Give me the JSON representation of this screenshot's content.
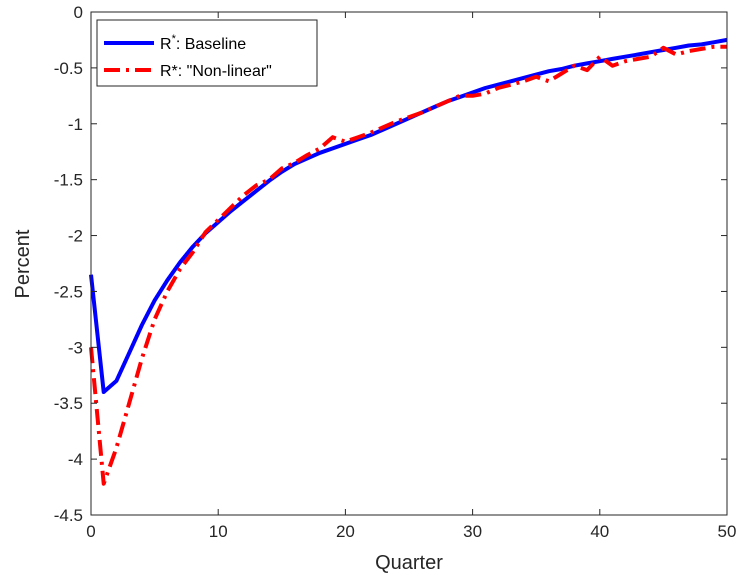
{
  "chart_data": {
    "type": "line",
    "xlabel": "Quarter",
    "ylabel": "Percent",
    "xlim": [
      0,
      50
    ],
    "ylim": [
      -4.5,
      0
    ],
    "xticks": [
      "0",
      "10",
      "20",
      "30",
      "40",
      "50"
    ],
    "yticks": [
      "0",
      "-0.5",
      "-1",
      "-1.5",
      "-2",
      "-2.5",
      "-3",
      "-3.5",
      "-4",
      "-4.5"
    ],
    "grid": false,
    "legend_position": "top-left",
    "series": [
      {
        "name": "R*: Baseline",
        "legend_base": "R",
        "legend_sup": "*",
        "legend_rest": ": Baseline",
        "color": "#0000ff",
        "style": "solid",
        "x": [
          0,
          1,
          2,
          3,
          4,
          5,
          6,
          7,
          8,
          9,
          10,
          11,
          12,
          13,
          14,
          15,
          16,
          17,
          18,
          19,
          20,
          21,
          22,
          23,
          24,
          25,
          26,
          27,
          28,
          29,
          30,
          31,
          32,
          33,
          34,
          35,
          36,
          37,
          38,
          39,
          40,
          41,
          42,
          43,
          44,
          45,
          46,
          47,
          48,
          49,
          50
        ],
        "y": [
          -2.35,
          -3.4,
          -3.3,
          -3.05,
          -2.8,
          -2.58,
          -2.4,
          -2.24,
          -2.1,
          -1.98,
          -1.88,
          -1.78,
          -1.69,
          -1.6,
          -1.51,
          -1.43,
          -1.36,
          -1.31,
          -1.26,
          -1.22,
          -1.18,
          -1.14,
          -1.1,
          -1.05,
          -1.0,
          -0.95,
          -0.9,
          -0.85,
          -0.8,
          -0.76,
          -0.72,
          -0.68,
          -0.65,
          -0.62,
          -0.59,
          -0.56,
          -0.53,
          -0.51,
          -0.48,
          -0.46,
          -0.44,
          -0.42,
          -0.4,
          -0.38,
          -0.36,
          -0.34,
          -0.32,
          -0.3,
          -0.29,
          -0.27,
          -0.25
        ]
      },
      {
        "name": "R*: \"Non-linear\"",
        "legend_base": "R*: \"Non-linear\"",
        "legend_sup": "",
        "legend_rest": "",
        "color": "#ff0000",
        "style": "dashdot",
        "x": [
          0,
          1,
          2,
          3,
          4,
          5,
          6,
          7,
          8,
          9,
          10,
          11,
          12,
          13,
          14,
          15,
          16,
          17,
          18,
          19,
          20,
          21,
          22,
          23,
          24,
          25,
          26,
          27,
          28,
          29,
          30,
          31,
          32,
          33,
          34,
          35,
          36,
          37,
          38,
          39,
          40,
          41,
          42,
          43,
          44,
          45,
          46,
          47,
          48,
          49,
          50
        ],
        "y": [
          -3.0,
          -4.22,
          -3.9,
          -3.5,
          -3.1,
          -2.75,
          -2.5,
          -2.3,
          -2.15,
          -1.97,
          -1.86,
          -1.75,
          -1.64,
          -1.55,
          -1.5,
          -1.4,
          -1.35,
          -1.28,
          -1.22,
          -1.12,
          -1.16,
          -1.12,
          -1.08,
          -1.03,
          -0.98,
          -0.94,
          -0.9,
          -0.85,
          -0.8,
          -0.75,
          -0.75,
          -0.73,
          -0.68,
          -0.65,
          -0.62,
          -0.58,
          -0.62,
          -0.55,
          -0.48,
          -0.52,
          -0.4,
          -0.48,
          -0.44,
          -0.42,
          -0.4,
          -0.32,
          -0.38,
          -0.35,
          -0.33,
          -0.31,
          -0.31
        ]
      }
    ]
  }
}
